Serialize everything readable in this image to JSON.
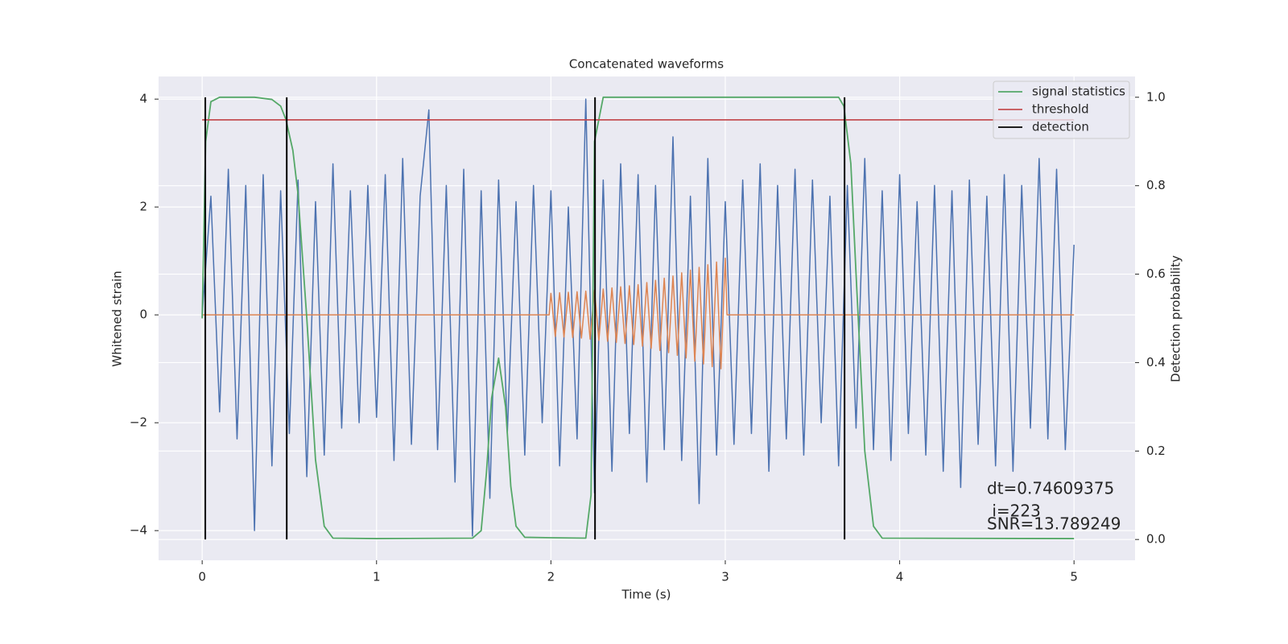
{
  "chart_data": {
    "type": "line",
    "title": "Concatenated waveforms",
    "x_label": "Time (s)",
    "y_label": "Whitened strain",
    "y2_label": "Detection probability",
    "xlim": [
      -0.25,
      5.35
    ],
    "xticks": [
      0,
      1,
      2,
      3,
      4,
      5
    ],
    "ylim": [
      -4.55,
      4.42
    ],
    "yticks": [
      {
        "value": -4,
        "label": "−4"
      },
      {
        "value": -2,
        "label": "−2"
      },
      0,
      2,
      4
    ],
    "y2lim": [
      -0.047,
      1.047
    ],
    "y2ticks": [
      {
        "value": 0,
        "label": "0.0"
      },
      0.2,
      0.4,
      0.6,
      0.8,
      {
        "value": 1,
        "label": "1.0"
      }
    ],
    "grid": true,
    "legend": "upper right",
    "series": [
      {
        "color": "#4c72b0",
        "x": [
          0,
          0.05,
          0.1,
          0.15,
          0.2,
          0.25,
          0.3,
          0.35,
          0.4,
          0.45,
          0.5,
          0.55,
          0.6,
          0.65,
          0.7,
          0.75,
          0.8,
          0.85,
          0.9,
          0.95,
          1,
          1.05,
          1.1,
          1.15,
          1.2,
          1.25,
          1.3,
          1.35,
          1.4,
          1.45,
          1.5,
          1.55,
          1.6,
          1.65,
          1.7,
          1.75,
          1.8,
          1.85,
          1.9,
          1.95,
          2,
          2.05,
          2.1,
          2.15,
          2.2,
          2.25,
          2.3,
          2.35,
          2.4,
          2.45,
          2.5,
          2.55,
          2.6,
          2.65,
          2.7,
          2.75,
          2.8,
          2.85,
          2.9,
          2.95,
          3,
          3.05,
          3.1,
          3.15,
          3.2,
          3.25,
          3.3,
          3.35,
          3.4,
          3.45,
          3.5,
          3.55,
          3.6,
          3.65,
          3.7,
          3.75,
          3.8,
          3.85,
          3.9,
          3.95,
          4,
          4.05,
          4.1,
          4.15,
          4.2,
          4.25,
          4.3,
          4.35,
          4.4,
          4.45,
          4.5,
          4.55,
          4.6,
          4.65,
          4.7,
          4.75,
          4.8,
          4.85,
          4.9,
          4.95,
          5
        ],
        "values": [
          0,
          2.2,
          -1.8,
          2.7,
          -2.3,
          2.4,
          -4.0,
          2.6,
          -2.8,
          2.3,
          -2.2,
          2.5,
          -3.0,
          2.1,
          -2.6,
          2.8,
          -2.1,
          2.3,
          -2.0,
          2.4,
          -1.9,
          2.6,
          -2.7,
          2.9,
          -2.4,
          2.2,
          3.8,
          -2.5,
          2.4,
          -3.1,
          2.7,
          -4.1,
          2.3,
          -3.4,
          2.5,
          -2.2,
          2.1,
          -2.6,
          2.4,
          -2.0,
          2.3,
          -2.8,
          2.0,
          -2.3,
          4.0,
          -3.3,
          2.5,
          -2.9,
          2.8,
          -2.2,
          2.6,
          -3.1,
          2.4,
          -2.5,
          3.3,
          -2.7,
          2.2,
          -3.5,
          2.9,
          -2.6,
          2.1,
          -2.4,
          2.5,
          -2.2,
          2.8,
          -2.9,
          2.4,
          -2.3,
          2.7,
          -2.6,
          2.5,
          -2.0,
          2.2,
          -2.8,
          2.4,
          -2.1,
          2.9,
          -2.5,
          2.3,
          -2.7,
          2.6,
          -2.2,
          2.1,
          -2.6,
          2.4,
          -2.9,
          2.3,
          -3.2,
          2.5,
          -2.4,
          2.2,
          -2.8,
          2.6,
          -2.9,
          2.4,
          -2.1,
          2.9,
          -2.3,
          2.7,
          -2.5,
          1.3
        ]
      },
      {
        "color": "#dd8452",
        "x": [
          0,
          1.99,
          2,
          2.025,
          2.05,
          2.075,
          2.1,
          2.125,
          2.15,
          2.175,
          2.2,
          2.225,
          2.25,
          2.275,
          2.3,
          2.325,
          2.35,
          2.375,
          2.4,
          2.425,
          2.45,
          2.475,
          2.5,
          2.525,
          2.55,
          2.575,
          2.6,
          2.625,
          2.65,
          2.675,
          2.7,
          2.725,
          2.75,
          2.775,
          2.8,
          2.825,
          2.85,
          2.875,
          2.9,
          2.925,
          2.95,
          2.975,
          3,
          3.01,
          5
        ],
        "values": [
          0,
          0,
          0.4,
          -0.4,
          0.41,
          -0.41,
          0.42,
          -0.42,
          0.43,
          -0.43,
          0.44,
          -0.45,
          0.46,
          -0.47,
          0.48,
          -0.49,
          0.5,
          -0.51,
          0.52,
          -0.53,
          0.54,
          -0.55,
          0.56,
          -0.58,
          0.6,
          -0.62,
          0.64,
          -0.66,
          0.68,
          -0.7,
          0.72,
          -0.75,
          0.78,
          -0.8,
          0.83,
          -0.86,
          0.88,
          -0.91,
          0.93,
          -0.96,
          0.98,
          -1.0,
          1.05,
          0,
          0
        ]
      },
      {
        "name": "signal statistics",
        "color": "#55a868",
        "axis": "y2",
        "x": [
          0,
          0.02,
          0.05,
          0.1,
          0.3,
          0.4,
          0.45,
          0.48,
          0.52,
          0.55,
          0.6,
          0.65,
          0.7,
          0.75,
          1.0,
          1.55,
          1.6,
          1.63,
          1.66,
          1.7,
          1.74,
          1.77,
          1.8,
          1.85,
          2.0,
          2.2,
          2.23,
          2.25,
          2.3,
          3.65,
          3.68,
          3.72,
          3.75,
          3.8,
          3.85,
          3.9,
          5
        ],
        "values": [
          0.5,
          0.9,
          0.99,
          1.0,
          1.0,
          0.995,
          0.98,
          0.95,
          0.88,
          0.78,
          0.5,
          0.18,
          0.03,
          0.003,
          0.002,
          0.003,
          0.02,
          0.15,
          0.32,
          0.41,
          0.3,
          0.12,
          0.03,
          0.005,
          0.004,
          0.003,
          0.1,
          0.9,
          1.0,
          1.0,
          0.98,
          0.85,
          0.6,
          0.2,
          0.03,
          0.003,
          0.002
        ]
      },
      {
        "name": "threshold",
        "color": "#c44e52",
        "axis": "y2",
        "x": [
          0,
          5
        ],
        "values": [
          0.949,
          0.949
        ]
      },
      {
        "name": "detection",
        "color": "#000000",
        "axis": "y2",
        "style": "vline",
        "span": [
          0,
          1
        ],
        "x": [
          0.018,
          0.485,
          2.253,
          3.684
        ]
      }
    ],
    "annotations": [
      "dt=0.74609375",
      " i=223",
      "SNR=13.789249"
    ]
  }
}
